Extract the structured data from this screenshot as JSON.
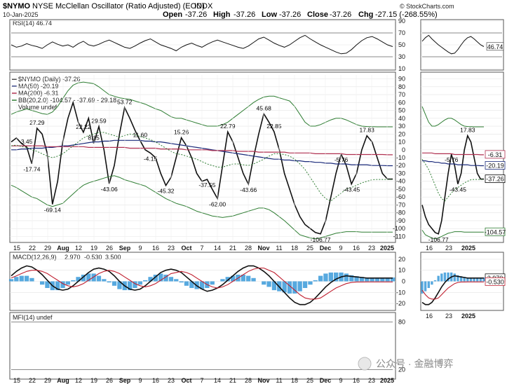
{
  "header": {
    "symbol": "$NYMO",
    "description": "NYSE McClellan Oscillator (Ratio Adjusted) (EOD)",
    "exchange": "INDX",
    "date": "10-Jan-2025",
    "ohlc": {
      "open_label": "Open",
      "open": "-37.26",
      "high_label": "High",
      "high": "-37.26",
      "low_label": "Low",
      "low": "-37.26",
      "close_label": "Close",
      "close": "-37.26",
      "chg_label": "Chg",
      "chg": "-27.15 (-268.55%)"
    },
    "credit": "© StockCharts.com"
  },
  "watermark": "公众号 · 金融博弈",
  "chart_data": [
    {
      "id": "rsi",
      "type": "line",
      "legend": "RSI(14) 46.74",
      "ylim": [
        10,
        90
      ],
      "ticks": [
        90,
        70,
        50,
        30,
        10
      ],
      "guides": [
        70,
        30
      ],
      "current_label": "46.74",
      "series": [
        {
          "name": "RSI(14)",
          "color": "#111111",
          "values": [
            50,
            46,
            48,
            52,
            49,
            47,
            44,
            50,
            55,
            51,
            48,
            50,
            46,
            52,
            56,
            50,
            48,
            51,
            55,
            58,
            54,
            50,
            46,
            44,
            48,
            53,
            57,
            60,
            55,
            50,
            47,
            44,
            40,
            46,
            50,
            53,
            49,
            46,
            51,
            55,
            58,
            55,
            52,
            49,
            46,
            44,
            48,
            54,
            60,
            63,
            58,
            53,
            49,
            46,
            50,
            56,
            62,
            66,
            60,
            55,
            50,
            46,
            42,
            38,
            35,
            36,
            42,
            50,
            57,
            62,
            64,
            60,
            55,
            50,
            47
          ]
        }
      ]
    },
    {
      "id": "nymo",
      "type": "line",
      "legend": [
        "$NYMO (Daily) -37.26",
        "MA(50) -20.19",
        "MA(200) -6.31",
        "BB(20,2.0) -104.57 - -37.69 - 29.18",
        "Volume undef"
      ],
      "ylim": [
        -115,
        95
      ],
      "ticks": [
        90,
        80,
        70,
        60,
        50,
        40,
        30,
        20,
        10,
        0,
        -10,
        -20,
        -30,
        -40,
        -50,
        -60,
        -70,
        -80,
        -90,
        -100,
        -110
      ],
      "x_labels": [
        "15",
        "22",
        "29",
        "Aug",
        "12",
        "19",
        "26",
        "Sep",
        "9",
        "16",
        "23",
        "Oct",
        "7",
        "14",
        "21",
        "28",
        "Nov",
        "11",
        "18",
        "25",
        "Dec",
        "9",
        "16",
        "23",
        "2025"
      ],
      "value_tags": [
        {
          "text": "-6.31",
          "color": "#b03050",
          "y": -6.31
        },
        {
          "text": "-20.19",
          "color": "#1a2a7a",
          "y": -20.19
        },
        {
          "text": "-37.26",
          "color": "#000000",
          "y": -37.26
        },
        {
          "text": "-104.57",
          "color": "#2e7d32",
          "y": -104.57
        }
      ],
      "annotations": [
        {
          "text": "27.29",
          "i": 5,
          "y": 27.29
        },
        {
          "text": "3.45",
          "i": 3,
          "y": 3.45
        },
        {
          "text": "-17.74",
          "i": 4,
          "y": -17.74
        },
        {
          "text": "-69.14",
          "i": 8,
          "y": -69.14
        },
        {
          "text": "22.22",
          "i": 14,
          "y": 22.22
        },
        {
          "text": "29.59",
          "i": 17,
          "y": 29.59
        },
        {
          "text": "8.15",
          "i": 16,
          "y": 8.15
        },
        {
          "text": "53.72",
          "i": 22,
          "y": 53.72
        },
        {
          "text": "-43.06",
          "i": 19,
          "y": -43.06
        },
        {
          "text": "11.60",
          "i": 25,
          "y": 11.6
        },
        {
          "text": "-4.15",
          "i": 27,
          "y": -4.15
        },
        {
          "text": "15.26",
          "i": 33,
          "y": 15.26
        },
        {
          "text": "-45.32",
          "i": 30,
          "y": -45.32
        },
        {
          "text": "-37.55",
          "i": 38,
          "y": -37.55
        },
        {
          "text": "-62.00",
          "i": 40,
          "y": -62.0
        },
        {
          "text": "22.79",
          "i": 42,
          "y": 22.79
        },
        {
          "text": "-43.66",
          "i": 46,
          "y": -43.66
        },
        {
          "text": "45.68",
          "i": 49,
          "y": 45.68
        },
        {
          "text": "22.85",
          "i": 51,
          "y": 22.85
        },
        {
          "text": "-106.77",
          "i": 60,
          "y": -106.77
        },
        {
          "text": "-5.76",
          "i": 64,
          "y": -5.76
        },
        {
          "text": "-43.45",
          "i": 66,
          "y": -43.45
        },
        {
          "text": "17.83",
          "i": 69,
          "y": 17.83
        }
      ],
      "series": [
        {
          "name": "$NYMO",
          "color": "#111111",
          "width": 1.6,
          "values": [
            10,
            15,
            8,
            3.45,
            -17.74,
            27.29,
            20,
            -5,
            -69.14,
            -40,
            10,
            40,
            60,
            35,
            22.22,
            40,
            8.15,
            29.59,
            0,
            -43.06,
            -20,
            20,
            53.72,
            40,
            25,
            11.6,
            0,
            -4.15,
            -10,
            -30,
            -45.32,
            -35,
            -10,
            15.26,
            5,
            -10,
            -30,
            -40,
            -37.55,
            -50,
            -62.0,
            -20,
            22.79,
            10,
            -10,
            -30,
            -43.66,
            -10,
            20,
            45.68,
            35,
            22.85,
            0,
            -30,
            -50,
            -70,
            -85,
            -95,
            -100,
            -105,
            -106.77,
            -90,
            -60,
            -30,
            -5.76,
            -20,
            -43.45,
            -30,
            0,
            17.83,
            10,
            -10,
            -30,
            -37.26,
            -37.26
          ]
        },
        {
          "name": "MA(50)",
          "color": "#1a2a7a",
          "width": 1.2,
          "values": [
            0,
            0,
            1,
            1,
            2,
            2,
            2,
            3,
            3,
            4,
            5,
            5,
            6,
            7,
            8,
            9,
            10,
            10,
            11,
            11,
            12,
            12,
            12,
            12,
            12,
            12,
            11,
            11,
            10,
            10,
            9,
            8,
            7,
            6,
            5,
            4,
            3,
            2,
            1,
            0,
            -1,
            -2,
            -3,
            -4,
            -5,
            -6,
            -7,
            -8,
            -9,
            -10,
            -11,
            -12,
            -12,
            -13,
            -13,
            -14,
            -14,
            -15,
            -15,
            -16,
            -16,
            -17,
            -17,
            -18,
            -18,
            -18,
            -19,
            -19,
            -19,
            -19,
            -20,
            -20,
            -20,
            -20.19,
            -20.19
          ]
        },
        {
          "name": "MA(200)",
          "color": "#b03050",
          "width": 1.2,
          "values": [
            5,
            5,
            5,
            5,
            5,
            5,
            5,
            4,
            4,
            4,
            4,
            4,
            4,
            4,
            4,
            3,
            3,
            3,
            3,
            3,
            3,
            3,
            3,
            2,
            2,
            2,
            2,
            2,
            2,
            1,
            1,
            1,
            1,
            1,
            0,
            0,
            0,
            0,
            0,
            -1,
            -1,
            -1,
            -1,
            -1,
            -2,
            -2,
            -2,
            -2,
            -3,
            -3,
            -3,
            -3,
            -3,
            -3,
            -4,
            -4,
            -4,
            -4,
            -4,
            -5,
            -5,
            -5,
            -5,
            -5,
            -5,
            -6,
            -6,
            -6,
            -6,
            -6,
            -6,
            -6,
            -6,
            -6.31,
            -6.31
          ]
        },
        {
          "name": "BB mid",
          "color": "#2e7d32",
          "width": 1,
          "dash": "2,2",
          "values": [
            5,
            6,
            4,
            3,
            0,
            -2,
            -5,
            -8,
            -10,
            -8,
            -5,
            0,
            5,
            10,
            15,
            18,
            20,
            22,
            22,
            20,
            18,
            16,
            18,
            20,
            19,
            17,
            15,
            13,
            10,
            6,
            2,
            -2,
            -5,
            -6,
            -8,
            -10,
            -12,
            -15,
            -18,
            -20,
            -22,
            -22,
            -20,
            -18,
            -18,
            -19,
            -20,
            -18,
            -15,
            -12,
            -8,
            -5,
            -5,
            -6,
            -8,
            -12,
            -18,
            -25,
            -35,
            -45,
            -55,
            -62,
            -65,
            -60,
            -55,
            -50,
            -48,
            -45,
            -42,
            -40,
            -38,
            -37.69,
            -37.69,
            -37.69,
            -37.69
          ]
        },
        {
          "name": "BB upper",
          "color": "#2e7d32",
          "width": 1,
          "values": [
            45,
            48,
            50,
            52,
            50,
            48,
            46,
            45,
            48,
            55,
            65,
            75,
            82,
            85,
            86,
            85,
            84,
            80,
            75,
            70,
            68,
            66,
            65,
            64,
            62,
            60,
            58,
            55,
            52,
            50,
            46,
            42,
            40,
            40,
            38,
            36,
            34,
            32,
            30,
            30,
            30,
            32,
            35,
            40,
            45,
            50,
            55,
            60,
            64,
            67,
            68,
            68,
            66,
            64,
            62,
            55,
            45,
            35,
            30,
            30,
            32,
            35,
            38,
            40,
            40,
            38,
            35,
            32,
            30,
            29.5,
            29.3,
            29.18,
            29.18,
            29.18,
            29.18
          ]
        },
        {
          "name": "BB lower",
          "color": "#2e7d32",
          "width": 1,
          "values": [
            -45,
            -48,
            -52,
            -56,
            -60,
            -62,
            -66,
            -70,
            -72,
            -70,
            -68,
            -62,
            -56,
            -50,
            -45,
            -42,
            -40,
            -38,
            -36,
            -34,
            -33,
            -35,
            -38,
            -40,
            -42,
            -44,
            -46,
            -50,
            -54,
            -58,
            -62,
            -65,
            -68,
            -70,
            -72,
            -75,
            -78,
            -80,
            -82,
            -84,
            -85,
            -86,
            -85,
            -84,
            -82,
            -80,
            -78,
            -76,
            -74,
            -74,
            -76,
            -80,
            -85,
            -90,
            -96,
            -102,
            -108,
            -110,
            -112,
            -113,
            -112,
            -110,
            -108,
            -106,
            -105,
            -104,
            -104,
            -104,
            -104.5,
            -104.5,
            -104.57,
            -104.57,
            -104.57,
            -104.57,
            -104.57
          ]
        }
      ]
    },
    {
      "id": "macd",
      "type": "line",
      "legend": {
        "name": "MACD(12,26,9)",
        "macd": "2.970",
        "signal": "-0.530",
        "hist": "3.500"
      },
      "ylim": [
        -25,
        25
      ],
      "ticks": [
        20,
        10,
        0,
        -10,
        -20
      ],
      "value_tags": [
        {
          "text": "2.970",
          "color": "#111111",
          "y": 2.97
        },
        {
          "text": "-0.530",
          "color": "#c02030",
          "y": -0.53
        }
      ],
      "series": [
        {
          "name": "MACD",
          "color": "#111111",
          "width": 1.6,
          "values": [
            5,
            9,
            12,
            14,
            13,
            10,
            6,
            1,
            -4,
            -7,
            -8,
            -7,
            -4,
            0,
            4,
            8,
            11,
            12,
            11,
            9,
            5,
            0,
            -4,
            -7,
            -8,
            -7,
            -4,
            0,
            4,
            8,
            10,
            11,
            10,
            8,
            4,
            0,
            -4,
            -7,
            -9,
            -8,
            -6,
            -3,
            1,
            5,
            9,
            12,
            14,
            14,
            12,
            9,
            5,
            0,
            -5,
            -10,
            -15,
            -19,
            -21,
            -21,
            -19,
            -15,
            -10,
            -5,
            -1,
            2,
            4,
            5,
            4.5,
            4,
            3.5,
            2.97,
            2.97,
            2.97,
            2.97,
            2.97,
            2.97
          ]
        },
        {
          "name": "Signal",
          "color": "#c02030",
          "width": 1.1,
          "values": [
            3,
            5,
            7,
            9,
            10,
            10,
            9,
            7,
            4,
            1,
            -2,
            -4,
            -5,
            -4,
            -2,
            1,
            4,
            7,
            9,
            10,
            9,
            7,
            4,
            1,
            -2,
            -4,
            -5,
            -4,
            -2,
            1,
            4,
            7,
            8,
            9,
            8,
            6,
            3,
            0,
            -3,
            -5,
            -6,
            -5,
            -3,
            0,
            3,
            6,
            9,
            11,
            12,
            12,
            10,
            8,
            4,
            0,
            -4,
            -8,
            -12,
            -15,
            -16,
            -16,
            -15,
            -12,
            -9,
            -6,
            -4,
            -2,
            -1,
            -0.6,
            -0.55,
            -0.53,
            -0.53,
            -0.53,
            -0.53,
            -0.53,
            -0.53
          ]
        },
        {
          "name": "Histogram",
          "color": "#3a9ad9",
          "type": "bar",
          "values": [
            2,
            4,
            5,
            5,
            3,
            0,
            -3,
            -6,
            -8,
            -8,
            -6,
            -3,
            1,
            4,
            6,
            7,
            7,
            5,
            2,
            -1,
            -4,
            -7,
            -8,
            -8,
            -6,
            -3,
            1,
            4,
            6,
            7,
            6,
            4,
            2,
            -1,
            -4,
            -6,
            -7,
            -7,
            -6,
            -3,
            0,
            2,
            4,
            5,
            6,
            6,
            5,
            3,
            0,
            -3,
            -5,
            -8,
            -9,
            -10,
            -11,
            -11,
            -9,
            -6,
            -3,
            1,
            5,
            7,
            8,
            8,
            8,
            7,
            5.5,
            4.6,
            4,
            3.5,
            3.5,
            3.5,
            3.5,
            3.5,
            3.5
          ]
        }
      ]
    },
    {
      "id": "mfi",
      "type": "line",
      "legend": "MFI(14) undef",
      "ylim": [
        10,
        90
      ],
      "ticks": [
        80,
        20
      ],
      "guides": [
        80,
        20
      ],
      "series": []
    },
    {
      "id": "zoom_x_labels",
      "type": "line",
      "categories": [
        "16",
        "23",
        "2025"
      ]
    }
  ]
}
